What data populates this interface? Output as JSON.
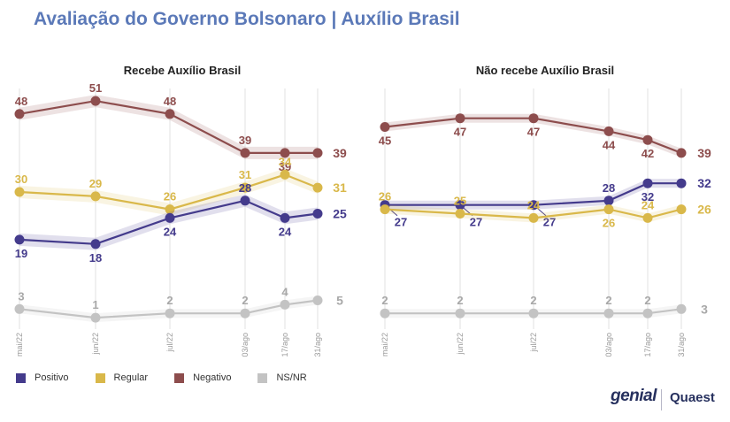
{
  "title": "Avaliação do Governo Bolsonaro | Auxílio Brasil",
  "legend": [
    {
      "name": "Positivo",
      "color": "#443b8c"
    },
    {
      "name": "Regular",
      "color": "#d9b84a"
    },
    {
      "name": "Negativo",
      "color": "#8d4d4d"
    },
    {
      "name": "NS/NR",
      "color": "#c3c3c3"
    }
  ],
  "logos": {
    "genial": "genial",
    "quaest": "Quaest"
  },
  "chart_data": [
    {
      "type": "line",
      "title": "Recebe Auxílio Brasil",
      "categories": [
        "mai/22",
        "jun/22",
        "jul/22",
        "03/ago",
        "17/ago",
        "31/ago"
      ],
      "ylim": [
        0,
        60
      ],
      "grid": "vertical",
      "series": [
        {
          "name": "Negativo",
          "color": "#8d4d4d",
          "values": [
            48,
            51,
            48,
            39,
            39,
            39
          ]
        },
        {
          "name": "Regular",
          "color": "#d9b84a",
          "values": [
            30,
            29,
            26,
            31,
            34,
            31
          ]
        },
        {
          "name": "Positivo",
          "color": "#443b8c",
          "values": [
            19,
            18,
            24,
            28,
            24,
            25
          ]
        },
        {
          "name": "NS/NR",
          "color": "#c3c3c3",
          "values": [
            3,
            1,
            2,
            2,
            4,
            5
          ]
        }
      ]
    },
    {
      "type": "line",
      "title": "Não recebe Auxílio Brasil",
      "categories": [
        "mai/22",
        "jun/22",
        "jul/22",
        "03/ago",
        "17/ago",
        "31/ago"
      ],
      "ylim": [
        0,
        60
      ],
      "grid": "vertical",
      "series": [
        {
          "name": "Negativo",
          "color": "#8d4d4d",
          "values": [
            45,
            47,
            47,
            44,
            42,
            39
          ]
        },
        {
          "name": "Positivo",
          "color": "#443b8c",
          "values": [
            27,
            27,
            27,
            28,
            32,
            32
          ]
        },
        {
          "name": "Regular",
          "color": "#d9b84a",
          "values": [
            26,
            25,
            24,
            26,
            24,
            26
          ]
        },
        {
          "name": "NS/NR",
          "color": "#c3c3c3",
          "values": [
            2,
            2,
            2,
            2,
            2,
            3
          ]
        }
      ]
    }
  ]
}
